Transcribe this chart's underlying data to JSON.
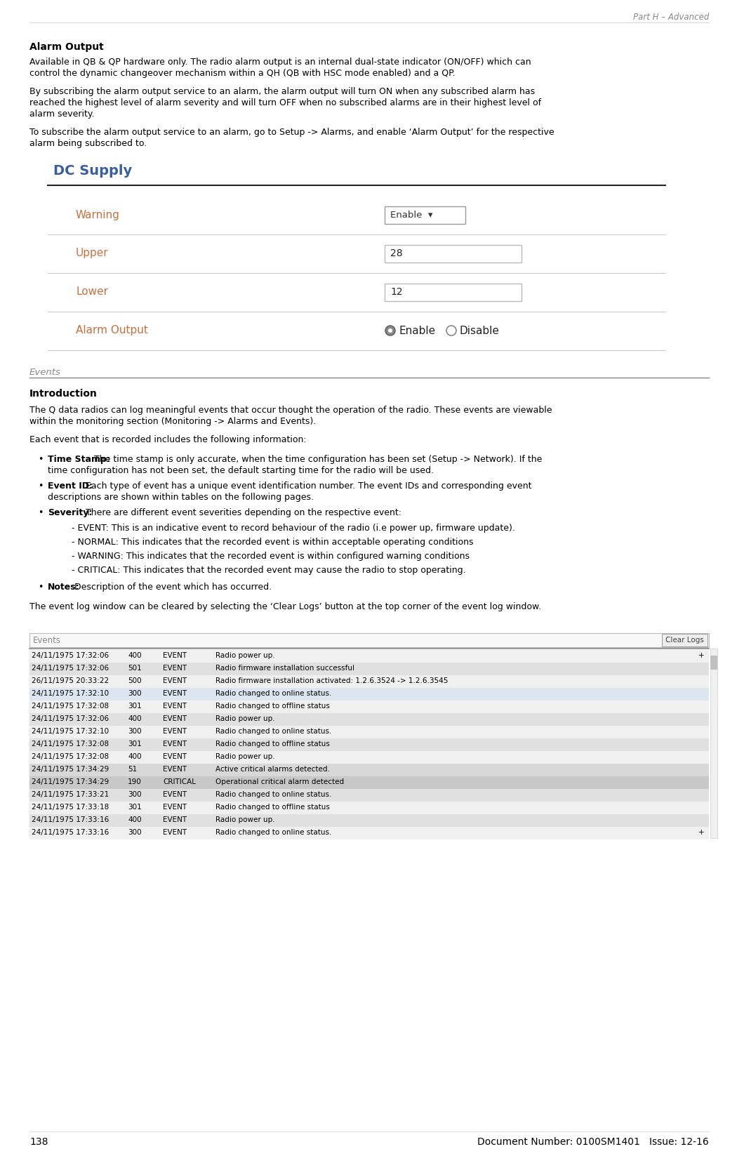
{
  "page_num": "138",
  "doc_info": "Document Number: 0100SM1401   Issue: 12-16",
  "header_right": "Part H – Advanced",
  "section_title": "Alarm Output",
  "para1": "Available in QB & QP hardware only. The radio alarm output is an internal dual-state indicator (ON/OFF) which can control the dynamic changeover mechanism within a QH (QB with HSC mode enabled) and a QP.",
  "para2": "By subscribing the alarm output service to an alarm, the alarm output will turn ON when any subscribed alarm has reached the highest level of alarm severity and will turn OFF when no subscribed alarms are in their highest level of alarm severity.",
  "para3": "To subscribe the alarm output service to an alarm, go to Setup -> Alarms, and enable ‘Alarm Output’ for the respective alarm being subscribed to.",
  "ui_title": "DC Supply",
  "ui_fields": [
    {
      "label": "Warning",
      "value": "Enable ▾",
      "type": "dropdown"
    },
    {
      "label": "Upper",
      "value": "28",
      "type": "input"
    },
    {
      "label": "Lower",
      "value": "12",
      "type": "input"
    },
    {
      "label": "Alarm Output",
      "value": "Enable  Disable",
      "type": "radio"
    }
  ],
  "events_section": "Events",
  "intro_title": "Introduction",
  "intro_para1": "The Q data radios can log meaningful events that occur thought the operation of the radio. These events are viewable within the monitoring section (Monitoring -> Alarms and Events).",
  "intro_para2": "Each event that is recorded includes the following information:",
  "bullet_items": [
    {
      "bold": "Time Stamp:",
      "text": " The time stamp is only accurate, when the time configuration has been set (Setup -> Network). If the time configuration has not been set, the default starting time for the radio will be used."
    },
    {
      "bold": "Event ID:",
      "text": " Each type of event has a unique event identification number. The event IDs and corresponding event descriptions are shown within tables on the following pages."
    },
    {
      "bold": "Severity:",
      "text": " There are different event severities depending on the respective event:"
    }
  ],
  "severity_items": [
    "- EVENT: This is an indicative event to record behaviour of the radio (i.e power up, firmware update).",
    "- NORMAL: This indicates that the recorded event is within acceptable operating conditions",
    "- WARNING: This indicates that the recorded event is within configured warning conditions",
    "- CRITICAL: This indicates that the recorded event may cause the radio to stop operating."
  ],
  "notes_bullet": {
    "bold": "Notes:",
    "text": " Description of the event which has occurred."
  },
  "clear_logs_para": "The event log window can be cleared by selecting the ‘Clear Logs’ button at the top corner of the event log window.",
  "events_rows": [
    [
      "24/11/1975 17:32:06",
      "400",
      "EVENT",
      "Radio power up.",
      "+"
    ],
    [
      "24/11/1975 17:32:06",
      "501",
      "EVENT",
      "Radio firmware installation successful",
      ""
    ],
    [
      "26/11/1975 20:33:22",
      "500",
      "EVENT",
      "Radio firmware installation activated: 1.2.6.3524 -> 1.2.6.3545",
      ""
    ],
    [
      "24/11/1975 17:32:10",
      "300",
      "EVENT",
      "Radio changed to online status.",
      ""
    ],
    [
      "24/11/1975 17:32:08",
      "301",
      "EVENT",
      "Radio changed to offline status",
      ""
    ],
    [
      "24/11/1975 17:32:06",
      "400",
      "EVENT",
      "Radio power up.",
      ""
    ],
    [
      "24/11/1975 17:32:10",
      "300",
      "EVENT",
      "Radio changed to online status.",
      ""
    ],
    [
      "24/11/1975 17:32:08",
      "301",
      "EVENT",
      "Radio changed to offline status",
      ""
    ],
    [
      "24/11/1975 17:32:08",
      "400",
      "EVENT",
      "Radio power up.",
      ""
    ],
    [
      "24/11/1975 17:34:29",
      "51",
      "EVENT",
      "Active critical alarms detected.",
      ""
    ],
    [
      "24/11/1975 17:34:29",
      "190",
      "CRITICAL",
      "Operational critical alarm detected",
      ""
    ],
    [
      "24/11/1975 17:33:21",
      "300",
      "EVENT",
      "Radio changed to online status.",
      ""
    ],
    [
      "24/11/1975 17:33:18",
      "301",
      "EVENT",
      "Radio changed to offline status",
      ""
    ],
    [
      "24/11/1975 17:33:16",
      "400",
      "EVENT",
      "Radio power up.",
      ""
    ],
    [
      "24/11/1975 17:33:16",
      "300",
      "EVENT",
      "Radio changed to online status.",
      "+"
    ]
  ],
  "bg_color": "#ffffff",
  "text_color": "#000000",
  "gray_color": "#888888",
  "ui_label_color": "#c87040",
  "ui_title_color": "#3a5fa0",
  "table_row_colors": [
    "#f0f0f0",
    "#e0e0e0",
    "#f0f0f0",
    "#dde5f0",
    "#f0f0f0",
    "#e0e0e0",
    "#f0f0f0",
    "#e0e0e0",
    "#f0f0f0",
    "#d8d8d8",
    "#c8c8c8",
    "#e0e0e0",
    "#f0f0f0",
    "#e0e0e0",
    "#f0f0f0"
  ],
  "scrollbar_color": "#c0c0c0"
}
